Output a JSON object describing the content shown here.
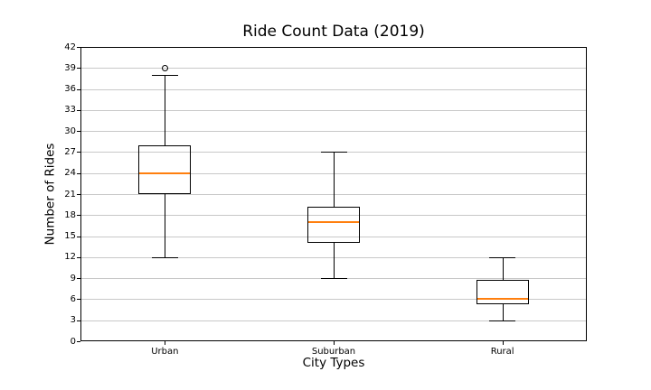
{
  "chart_data": {
    "type": "boxplot",
    "title": "Ride Count Data (2019)",
    "xlabel": "City Types",
    "ylabel": "Number of Rides",
    "categories": [
      "Urban",
      "Suburban",
      "Rural"
    ],
    "ylim": [
      0,
      42
    ],
    "ytick_step": 3,
    "yticks": [
      0,
      3,
      6,
      9,
      12,
      15,
      18,
      21,
      24,
      27,
      30,
      33,
      36,
      39,
      42
    ],
    "grid": true,
    "legend": false,
    "boxes": [
      {
        "category": "Urban",
        "whisker_low": 12,
        "q1": 21,
        "median": 24,
        "q3": 28,
        "whisker_high": 38,
        "outliers": [
          39
        ]
      },
      {
        "category": "Suburban",
        "whisker_low": 9,
        "q1": 14,
        "median": 17,
        "q3": 19.25,
        "whisker_high": 27,
        "outliers": []
      },
      {
        "category": "Rural",
        "whisker_low": 3,
        "q1": 5.25,
        "median": 6,
        "q3": 8.75,
        "whisker_high": 12,
        "outliers": []
      }
    ],
    "colors": {
      "box_line": "#000000",
      "median": "#ff7f0e",
      "grid": "#c8c8c8",
      "background": "#ffffff",
      "text": "#000000"
    }
  }
}
